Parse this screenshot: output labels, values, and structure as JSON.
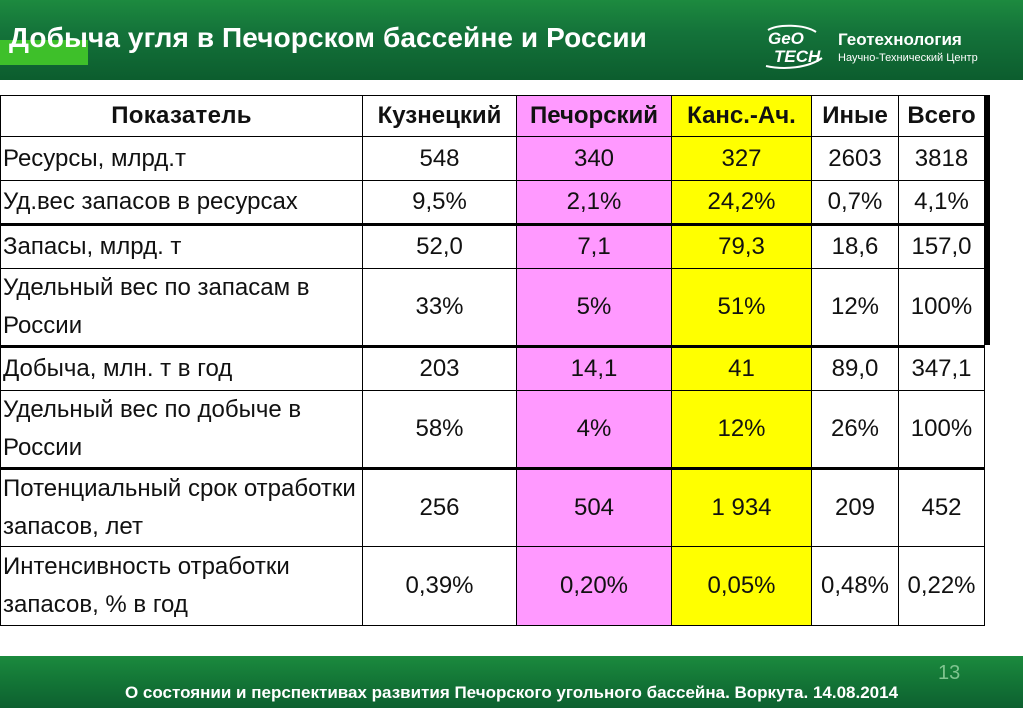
{
  "header": {
    "title": "Добыча угля в Печорском бассейне и России",
    "logo_name": "Геотехнология",
    "logo_subtitle": "Научно-Технический Центр",
    "logo_mark_top": "GeO",
    "logo_mark_bottom": "TECH"
  },
  "table": {
    "headers": [
      "Показатель",
      "Кузнецкий",
      "Печорский",
      "Канс.-Ач.",
      "Иные",
      "Всего"
    ],
    "rows": [
      {
        "label": "Ресурсы, млрд.т",
        "values": [
          "548",
          "340",
          "327",
          "2603",
          "3818"
        ]
      },
      {
        "label": "Уд.вес запасов в ресурсах",
        "values": [
          "9,5%",
          "2,1%",
          "24,2%",
          "0,7%",
          "4,1%"
        ]
      },
      {
        "label": "Запасы, млрд. т",
        "values": [
          "52,0",
          "7,1",
          "79,3",
          "18,6",
          "157,0"
        ]
      },
      {
        "label": "Удельный вес по запасам в России",
        "values": [
          "33%",
          "5%",
          "51%",
          "12%",
          "100%"
        ]
      },
      {
        "label": "Добыча, млн. т в год",
        "values": [
          "203",
          "14,1",
          "41",
          "89,0",
          "347,1"
        ]
      },
      {
        "label": "Удельный вес  по добыче в России",
        "values": [
          "58%",
          "4%",
          "12%",
          "26%",
          "100%"
        ]
      },
      {
        "label": "Потенциальный срок отработки запасов, лет",
        "values": [
          "256",
          "504",
          "1 934",
          "209",
          "452"
        ]
      },
      {
        "label": "Интенсивность отработки запасов, % в год",
        "values": [
          "0,39%",
          "0,20%",
          "0,05%",
          "0,48%",
          "0,22%"
        ]
      }
    ],
    "highlight_colors": {
      "pechorsky": "#ff99ff",
      "kans_ach": "#ffff00"
    }
  },
  "footer": {
    "page_number": "13",
    "text": "О состоянии и перспективах развития Печорского угольного бассейна. Воркута. 14.08.2014"
  }
}
